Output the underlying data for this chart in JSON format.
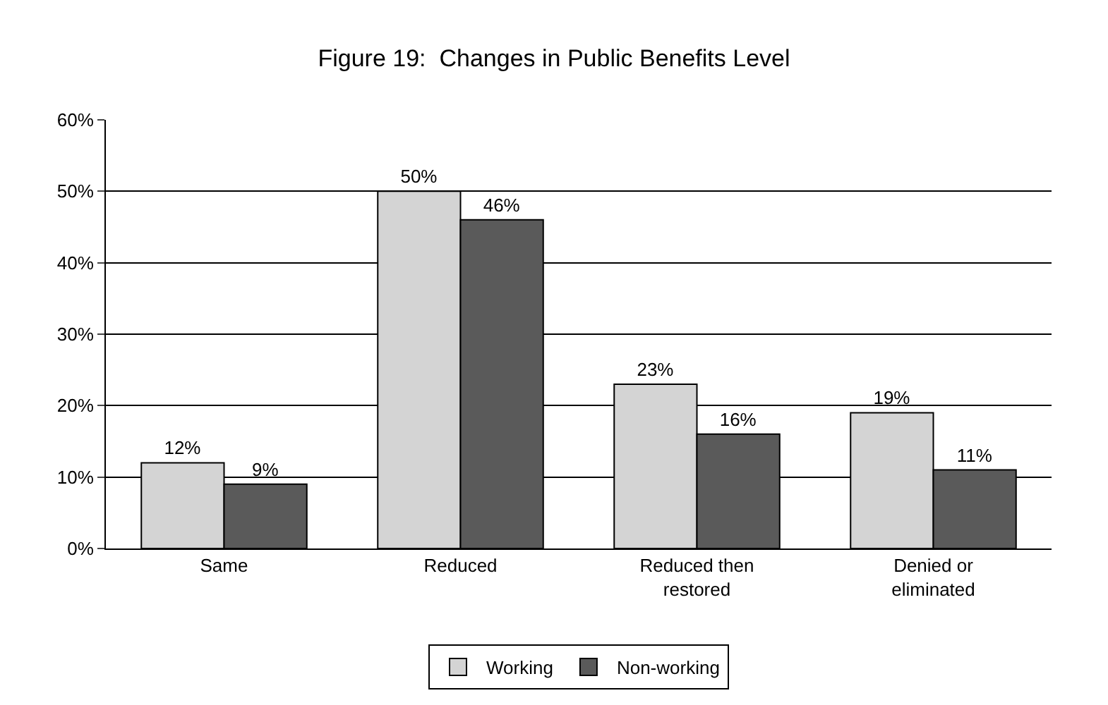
{
  "chart_data": {
    "type": "bar",
    "title": "Figure 19:  Changes in Public Benefits Level",
    "categories": [
      "Same",
      "Reduced",
      "Reduced then restored",
      "Denied or eliminated"
    ],
    "series": [
      {
        "name": "Working",
        "color": "#d4d4d4",
        "values": [
          12,
          50,
          23,
          19
        ],
        "value_labels": [
          "12%",
          "50%",
          "23%",
          "19%"
        ]
      },
      {
        "name": "Non-working",
        "color": "#5a5a5a",
        "values": [
          9,
          46,
          16,
          11
        ],
        "value_labels": [
          "9%",
          "46%",
          "16%",
          "11%"
        ]
      }
    ],
    "ylim": [
      0,
      60
    ],
    "yticks": [
      {
        "value": 0,
        "label": "0%"
      },
      {
        "value": 10,
        "label": "10%"
      },
      {
        "value": 20,
        "label": "20%"
      },
      {
        "value": 30,
        "label": "30%"
      },
      {
        "value": 40,
        "label": "40%"
      },
      {
        "value": 50,
        "label": "50%"
      },
      {
        "value": 60,
        "label": "60%"
      }
    ],
    "grid": "y",
    "legend": "bottom"
  }
}
